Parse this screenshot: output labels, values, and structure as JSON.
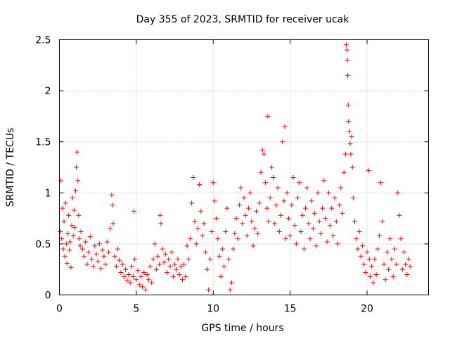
{
  "chart_data": {
    "type": "scatter",
    "title": "Day 355 of 2023, SRMTID for receiver ucak",
    "xlabel": "GPS time / hours",
    "ylabel": "SRMTID / TECUs",
    "xlim": [
      0,
      24
    ],
    "ylim": [
      0,
      2.5
    ],
    "xticks": [
      0,
      5,
      10,
      15,
      20
    ],
    "xtick_labels": [
      "0",
      "5",
      "10",
      "15",
      "20"
    ],
    "yticks": [
      0,
      0.5,
      1,
      1.5,
      2,
      2.5
    ],
    "ytick_labels": [
      "0",
      "0.5",
      "1",
      "1.5",
      "2",
      "2.5"
    ],
    "grid": true,
    "marker": "+",
    "color": "#ff0000",
    "series": [
      {
        "name": "SRMTID",
        "points": [
          [
            0.05,
            0.62
          ],
          [
            0.1,
            1.12
          ],
          [
            0.15,
            0.55
          ],
          [
            0.2,
            0.85
          ],
          [
            0.25,
            0.45
          ],
          [
            0.3,
            0.72
          ],
          [
            0.35,
            0.38
          ],
          [
            0.4,
            0.9
          ],
          [
            0.45,
            0.5
          ],
          [
            0.5,
            0.31
          ],
          [
            0.55,
            0.6
          ],
          [
            0.6,
            0.78
          ],
          [
            0.65,
            0.44
          ],
          [
            0.7,
            0.52
          ],
          [
            0.75,
            0.27
          ],
          [
            0.8,
            0.68
          ],
          [
            0.85,
            0.95
          ],
          [
            0.9,
            0.58
          ],
          [
            0.95,
            0.83
          ],
          [
            1.0,
            0.66
          ],
          [
            1.05,
            1.02
          ],
          [
            1.1,
            1.25
          ],
          [
            1.15,
            1.4
          ],
          [
            1.2,
            1.12
          ],
          [
            1.25,
            0.78
          ],
          [
            1.3,
            0.55
          ],
          [
            1.35,
            0.48
          ],
          [
            1.4,
            0.62
          ],
          [
            1.5,
            0.45
          ],
          [
            1.6,
            0.38
          ],
          [
            1.7,
            0.52
          ],
          [
            1.8,
            0.3
          ],
          [
            1.9,
            0.42
          ],
          [
            2.0,
            0.57
          ],
          [
            2.1,
            0.35
          ],
          [
            2.2,
            0.28
          ],
          [
            2.3,
            0.48
          ],
          [
            2.4,
            0.4
          ],
          [
            2.5,
            0.33
          ],
          [
            2.6,
            0.5
          ],
          [
            2.7,
            0.26
          ],
          [
            2.8,
            0.44
          ],
          [
            2.9,
            0.38
          ],
          [
            3.0,
            0.3
          ],
          [
            3.1,
            0.52
          ],
          [
            3.2,
            0.42
          ],
          [
            3.3,
            0.65
          ],
          [
            3.4,
            0.98
          ],
          [
            3.45,
            0.88
          ],
          [
            3.5,
            0.7
          ],
          [
            3.6,
            0.38
          ],
          [
            3.7,
            0.28
          ],
          [
            3.8,
            0.45
          ],
          [
            3.9,
            0.34
          ],
          [
            4.0,
            0.22
          ],
          [
            4.1,
            0.3
          ],
          [
            4.2,
            0.18
          ],
          [
            4.3,
            0.25
          ],
          [
            4.4,
            0.14
          ],
          [
            4.5,
            0.2
          ],
          [
            4.6,
            0.12
          ],
          [
            4.7,
            0.28
          ],
          [
            4.8,
            0.18
          ],
          [
            4.85,
            0.82
          ],
          [
            4.9,
            0.35
          ],
          [
            5.0,
            0.15
          ],
          [
            5.1,
            0.24
          ],
          [
            5.2,
            0.1
          ],
          [
            5.3,
            0.18
          ],
          [
            5.4,
            0.08
          ],
          [
            5.5,
            0.22
          ],
          [
            5.6,
            0.05
          ],
          [
            5.7,
            0.2
          ],
          [
            5.8,
            0.15
          ],
          [
            5.9,
            0.28
          ],
          [
            6.0,
            0.12
          ],
          [
            6.1,
            0.35
          ],
          [
            6.2,
            0.5
          ],
          [
            6.3,
            0.25
          ],
          [
            6.4,
            0.38
          ],
          [
            6.5,
            0.3
          ],
          [
            6.55,
            0.78
          ],
          [
            6.6,
            0.7
          ],
          [
            6.7,
            0.45
          ],
          [
            6.8,
            0.32
          ],
          [
            6.9,
            0.4
          ],
          [
            7.0,
            0.22
          ],
          [
            7.1,
            0.35
          ],
          [
            7.2,
            0.28
          ],
          [
            7.3,
            0.42
          ],
          [
            7.4,
            0.18
          ],
          [
            7.5,
            0.3
          ],
          [
            7.6,
            0.25
          ],
          [
            7.7,
            0.35
          ],
          [
            7.8,
            0.2
          ],
          [
            7.9,
            0.28
          ],
          [
            8.0,
            0.15
          ],
          [
            8.1,
            0.3
          ],
          [
            8.2,
            0.18
          ],
          [
            8.3,
            0.48
          ],
          [
            8.4,
            0.35
          ],
          [
            8.5,
            0.55
          ],
          [
            8.6,
            0.9
          ],
          [
            8.7,
            1.15
          ],
          [
            8.8,
            0.72
          ],
          [
            8.9,
            0.5
          ],
          [
            9.0,
            0.65
          ],
          [
            9.1,
            1.08
          ],
          [
            9.2,
            0.82
          ],
          [
            9.3,
            0.58
          ],
          [
            9.4,
            0.7
          ],
          [
            9.5,
            0.42
          ],
          [
            9.6,
            0.25
          ],
          [
            9.7,
            0.05
          ],
          [
            9.8,
            0.35
          ],
          [
            9.9,
            0.62
          ],
          [
            10.0,
            1.1
          ],
          [
            10.1,
            0.92
          ],
          [
            10.2,
            0.75
          ],
          [
            10.3,
            0.55
          ],
          [
            10.4,
            0.38
          ],
          [
            10.5,
            0.18
          ],
          [
            10.6,
            0.45
          ],
          [
            10.7,
            0.28
          ],
          [
            10.8,
            0.62
          ],
          [
            10.9,
            0.85
          ],
          [
            11.0,
            0.35
          ],
          [
            11.1,
            0.05
          ],
          [
            11.2,
            0.12
          ],
          [
            11.3,
            0.45
          ],
          [
            11.4,
            0.6
          ],
          [
            11.5,
            0.75
          ],
          [
            11.6,
            0.55
          ],
          [
            11.7,
            0.88
          ],
          [
            11.8,
            1.05
          ],
          [
            11.9,
            0.7
          ],
          [
            12.0,
            0.95
          ],
          [
            12.1,
            0.78
          ],
          [
            12.2,
            0.58
          ],
          [
            12.3,
            0.85
          ],
          [
            12.4,
            1.0
          ],
          [
            12.5,
            0.72
          ],
          [
            12.6,
            0.48
          ],
          [
            12.7,
            0.65
          ],
          [
            12.8,
            0.82
          ],
          [
            12.9,
            0.6
          ],
          [
            13.0,
            0.9
          ],
          [
            13.1,
            1.2
          ],
          [
            13.2,
            1.42
          ],
          [
            13.3,
            1.38
          ],
          [
            13.4,
            1.1
          ],
          [
            13.5,
            0.85
          ],
          [
            13.55,
            1.75
          ],
          [
            13.6,
            0.72
          ],
          [
            13.7,
            0.95
          ],
          [
            13.8,
            1.25
          ],
          [
            13.9,
            1.15
          ],
          [
            14.0,
            0.7
          ],
          [
            14.1,
            0.88
          ],
          [
            14.2,
            1.05
          ],
          [
            14.3,
            0.62
          ],
          [
            14.4,
            0.78
          ],
          [
            14.5,
            1.5
          ],
          [
            14.6,
            0.92
          ],
          [
            14.65,
            1.65
          ],
          [
            14.7,
            0.55
          ],
          [
            14.8,
            1.0
          ],
          [
            14.9,
            0.75
          ],
          [
            15.0,
            0.58
          ],
          [
            15.1,
            0.88
          ],
          [
            15.2,
            1.15
          ],
          [
            15.3,
            0.68
          ],
          [
            15.4,
            0.5
          ],
          [
            15.5,
            0.95
          ],
          [
            15.6,
            1.1
          ],
          [
            15.7,
            0.62
          ],
          [
            15.8,
            0.78
          ],
          [
            15.9,
            0.45
          ],
          [
            16.0,
            0.85
          ],
          [
            16.1,
            1.05
          ],
          [
            16.2,
            0.7
          ],
          [
            16.3,
            0.55
          ],
          [
            16.4,
            0.92
          ],
          [
            16.5,
            0.65
          ],
          [
            16.6,
            0.8
          ],
          [
            16.7,
            0.48
          ],
          [
            16.8,
            1.0
          ],
          [
            16.9,
            0.72
          ],
          [
            17.0,
            0.6
          ],
          [
            17.1,
            0.85
          ],
          [
            17.2,
            1.12
          ],
          [
            17.3,
            0.75
          ],
          [
            17.4,
            0.52
          ],
          [
            17.5,
            1.0
          ],
          [
            17.6,
            0.68
          ],
          [
            17.7,
            0.85
          ],
          [
            17.8,
            0.58
          ],
          [
            17.9,
            0.95
          ],
          [
            18.0,
            0.72
          ],
          [
            18.1,
            0.5
          ],
          [
            18.2,
            0.88
          ],
          [
            18.3,
            1.05
          ],
          [
            18.4,
            0.8
          ],
          [
            18.5,
            1.2
          ],
          [
            18.6,
            1.38
          ],
          [
            18.65,
            2.45
          ],
          [
            18.7,
            2.4
          ],
          [
            18.72,
            2.3
          ],
          [
            18.75,
            2.15
          ],
          [
            18.78,
            1.86
          ],
          [
            18.8,
            1.7
          ],
          [
            18.85,
            1.6
          ],
          [
            18.9,
            1.48
          ],
          [
            18.95,
            1.38
          ],
          [
            19.0,
            1.55
          ],
          [
            19.05,
            1.25
          ],
          [
            19.1,
            0.95
          ],
          [
            19.2,
            0.72
          ],
          [
            19.3,
            0.55
          ],
          [
            19.4,
            0.45
          ],
          [
            19.5,
            0.62
          ],
          [
            19.6,
            0.38
          ],
          [
            19.7,
            0.48
          ],
          [
            19.8,
            0.3
          ],
          [
            19.9,
            0.22
          ],
          [
            20.0,
            0.42
          ],
          [
            20.1,
            1.22
          ],
          [
            20.15,
            0.35
          ],
          [
            20.2,
            0.18
          ],
          [
            20.3,
            0.28
          ],
          [
            20.4,
            0.12
          ],
          [
            20.5,
            0.35
          ],
          [
            20.6,
            0.2
          ],
          [
            20.7,
            0.45
          ],
          [
            20.8,
            0.58
          ],
          [
            20.9,
            1.1
          ],
          [
            21.0,
            0.72
          ],
          [
            21.1,
            0.3
          ],
          [
            21.2,
            0.15
          ],
          [
            21.3,
            0.42
          ],
          [
            21.4,
            0.25
          ],
          [
            21.5,
            0.55
          ],
          [
            21.6,
            0.35
          ],
          [
            21.7,
            0.18
          ],
          [
            21.8,
            0.45
          ],
          [
            21.9,
            0.3
          ],
          [
            22.0,
            1.0
          ],
          [
            22.1,
            0.78
          ],
          [
            22.2,
            0.55
          ],
          [
            22.3,
            0.25
          ],
          [
            22.4,
            0.42
          ],
          [
            22.5,
            0.3
          ],
          [
            22.6,
            0.2
          ],
          [
            22.7,
            0.35
          ],
          [
            22.8,
            0.28
          ]
        ]
      }
    ]
  }
}
